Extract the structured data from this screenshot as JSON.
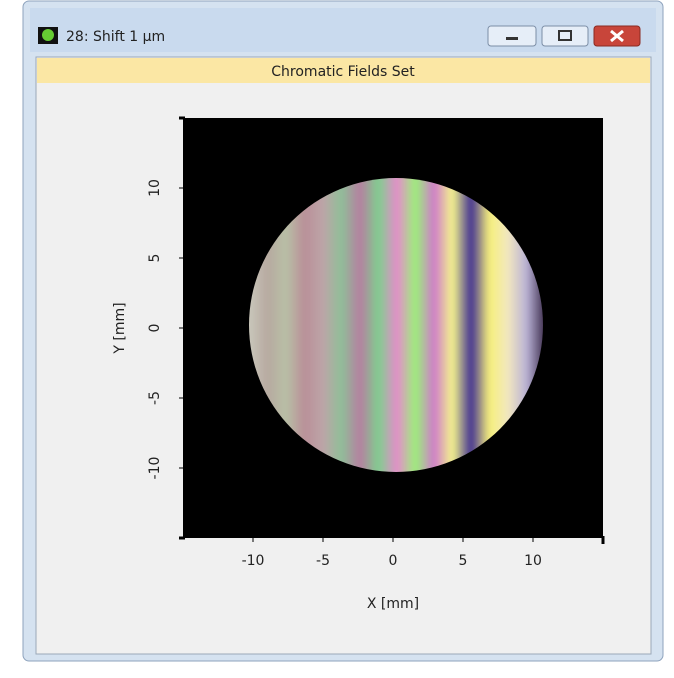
{
  "window": {
    "title": "28: Shift 1 µm"
  },
  "chart_data": {
    "type": "image",
    "title": "Chromatic Fields Set",
    "x_label": "X [mm]",
    "y_label": "Y [mm]",
    "xlim": [
      -15,
      15
    ],
    "ylim": [
      -15,
      15
    ],
    "xticks": [
      -10,
      -5,
      0,
      5,
      10
    ],
    "yticks": [
      -10,
      -5,
      0,
      5,
      10
    ]
  }
}
